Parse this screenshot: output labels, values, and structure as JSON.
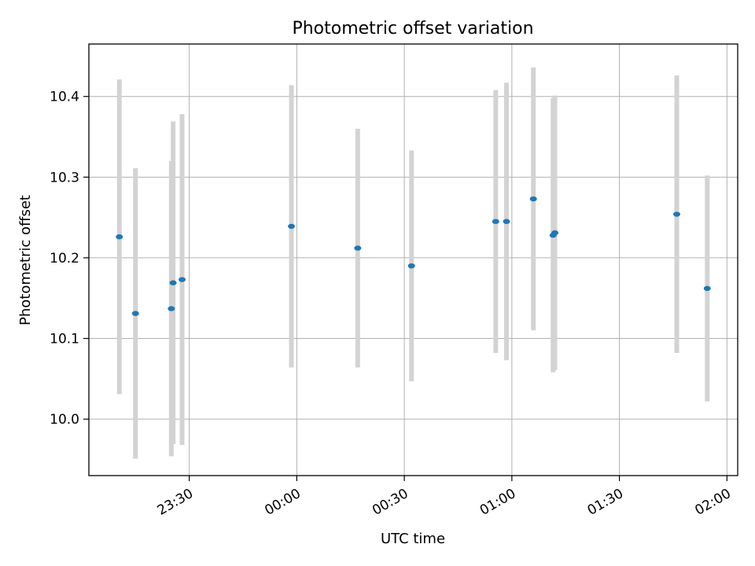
{
  "chart_data": {
    "type": "scatter",
    "title": "Photometric offset variation",
    "xlabel": "UTC time",
    "ylabel": "Photometric offset",
    "x_ticks": [
      "23:30",
      "00:00",
      "00:30",
      "01:00",
      "01:30",
      "02:00"
    ],
    "y_ticks": [
      "10.0",
      "10.1",
      "10.2",
      "10.3",
      "10.4"
    ],
    "xlim": [
      "23:02",
      "02:03"
    ],
    "ylim": [
      9.93,
      10.465
    ],
    "grid": true,
    "point_color": "#1f77b4",
    "errorbar_color": "#d3d3d3",
    "points": [
      {
        "x": "23:10:30",
        "y": 10.226,
        "yerr": 0.195
      },
      {
        "x": "23:15:00",
        "y": 10.131,
        "yerr": 0.18
      },
      {
        "x": "23:25:00",
        "y": 10.137,
        "yerr": 0.183
      },
      {
        "x": "23:25:30",
        "y": 10.169,
        "yerr": 0.2
      },
      {
        "x": "23:28:00",
        "y": 10.173,
        "yerr": 0.205
      },
      {
        "x": "23:58:30",
        "y": 10.239,
        "yerr": 0.175
      },
      {
        "x": "00:17:00",
        "y": 10.212,
        "yerr": 0.148
      },
      {
        "x": "00:32:00",
        "y": 10.19,
        "yerr": 0.143
      },
      {
        "x": "00:55:30",
        "y": 10.245,
        "yerr": 0.163
      },
      {
        "x": "00:58:30",
        "y": 10.245,
        "yerr": 0.172
      },
      {
        "x": "01:06:00",
        "y": 10.273,
        "yerr": 0.163
      },
      {
        "x": "01:11:30",
        "y": 10.228,
        "yerr": 0.17
      },
      {
        "x": "01:12:00",
        "y": 10.231,
        "yerr": 0.17
      },
      {
        "x": "01:46:00",
        "y": 10.254,
        "yerr": 0.172
      },
      {
        "x": "01:54:30",
        "y": 10.162,
        "yerr": 0.14
      }
    ]
  }
}
